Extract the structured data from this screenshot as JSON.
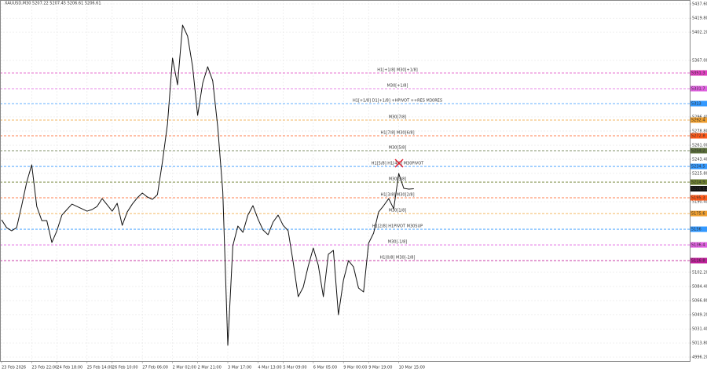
{
  "chart_data": {
    "type": "line",
    "title": "XAUUSD,M30  5207.22 5207.45 5206.61 5206.61",
    "categories": [
      "23 Feb 2026",
      null,
      null,
      null,
      null,
      null,
      "23 Feb 22:00",
      null,
      null,
      null,
      null,
      "24 Feb 18:00",
      null,
      null,
      null,
      null,
      null,
      "25 Feb 14:00",
      null,
      null,
      null,
      null,
      "26 Feb 10:00",
      null,
      null,
      null,
      null,
      null,
      "27 Feb 06:00",
      null,
      null,
      null,
      null,
      null,
      "2 Mar 02:00",
      null,
      null,
      null,
      null,
      "2 Mar 21:00",
      null,
      null,
      null,
      null,
      null,
      "3 Mar 17:00",
      null,
      null,
      null,
      null,
      null,
      "4 Mar 13:00",
      null,
      null,
      null,
      null,
      "5 Mar 09:00",
      null,
      null,
      null,
      null,
      null,
      "6 Mar 05:00",
      null,
      null,
      null,
      null,
      null,
      "9 Mar 00:00",
      null,
      null,
      null,
      null,
      "9 Mar 19:00",
      null,
      null,
      null,
      null,
      null,
      "10 Mar 15:00",
      null,
      null,
      null
    ],
    "series": [
      {
        "name": "XAUUSD,M30",
        "color": "#111111",
        "values": [
          5167.8,
          5158.0,
          5154.1,
          5158.0,
          5185.5,
          5214.9,
          5236.5,
          5184.5,
          5166.8,
          5166.8,
          5139.4,
          5154.1,
          5173.7,
          5180.6,
          5187.4,
          5184.5,
          5181.5,
          5178.6,
          5180.6,
          5184.5,
          5194.3,
          5186.5,
          5178.6,
          5188.4,
          5160.9,
          5177.6,
          5187.4,
          5195.3,
          5201.2,
          5196.3,
          5193.3,
          5199.2,
          5240.4,
          5287.5,
          5369.9,
          5336.5,
          5411.1,
          5397.4,
          5359.1,
          5298.3,
          5338.5,
          5359.1,
          5341.5,
          5283.6,
          5203.1,
          5010.9,
          5135.4,
          5160.0,
          5152.1,
          5173.7,
          5185.5,
          5168.8,
          5155.1,
          5149.2,
          5164.9,
          5173.7,
          5160.9,
          5154.1,
          5114.9,
          5071.7,
          5083.5,
          5110.0,
          5132.5,
          5110.9,
          5071.7,
          5124.7,
          5129.6,
          5049.1,
          5092.3,
          5116.8,
          5109.0,
          5082.5,
          5077.6,
          5138.4,
          5151.2,
          5177.6,
          5185.5,
          5194.3,
          5181.5,
          5225.7,
          5207.1,
          5206.1,
          5206.61
        ]
      }
    ],
    "ylim": [
      4996.2,
      5437.6
    ],
    "yticks": [
      {
        "value": 5437.6,
        "label": "5437.60"
      },
      {
        "value": 5419.8,
        "label": "5419.80"
      },
      {
        "value": 5402.2,
        "label": "5402.20"
      },
      {
        "value": 5367.0,
        "label": "5367.00"
      },
      {
        "value": 5296.4,
        "label": "5296.40"
      },
      {
        "value": 5278.8,
        "label": "5278.80"
      },
      {
        "value": 5261.0,
        "label": "5261.00"
      },
      {
        "value": 5243.4,
        "label": "5243.40"
      },
      {
        "value": 5225.8,
        "label": "5225.80"
      },
      {
        "value": 5190.4,
        "label": "5190.40"
      },
      {
        "value": 5102.2,
        "label": "5102.20"
      },
      {
        "value": 5084.4,
        "label": "5084.40"
      },
      {
        "value": 5066.8,
        "label": "5066.80"
      },
      {
        "value": 5049.2,
        "label": "5049.20"
      },
      {
        "value": 5031.4,
        "label": "5031.40"
      },
      {
        "value": 5013.8,
        "label": "5013.80"
      },
      {
        "value": 4996.2,
        "label": "4996.20"
      }
    ],
    "grid": true,
    "levels": [
      {
        "label": "H1[+1/8] M30[+1/8]",
        "value": 5351.3,
        "color": "#e040c0"
      },
      {
        "label": "M30[+1/8]",
        "value": 5331.7,
        "color": "#e060e0"
      },
      {
        "label": "H1[+1/8] D1[+1/8] +HPIVOT ++RES M30RES",
        "value": 5313.0,
        "color": "#3399ff"
      },
      {
        "label": "M30[7/8]",
        "value": 5292.4,
        "color": "#f0a030"
      },
      {
        "label": "H1[7/8] M30[6/8]",
        "value": 5272.8,
        "color": "#ff5a1a"
      },
      {
        "label": "M30[5/8]",
        "value": 5254.2,
        "color": "#5a6e3a"
      },
      {
        "label": "H1[5/8] H1[4/8] M30PIVOT",
        "value": 5234.5,
        "color": "#3399ff"
      },
      {
        "label": "M30[3/8]",
        "value": 5214.9,
        "color": "#6b7d2e"
      },
      {
        "label": "H1[3/8] M30[2/8]",
        "value": 5195.3,
        "color": "#ff5a1a"
      },
      {
        "label": "M30[1/8]",
        "value": 5175.6,
        "color": "#f0a030"
      },
      {
        "label": "H1[2/8] H1PIVOT M30SUP",
        "value": 5156.0,
        "color": "#3399ff"
      },
      {
        "label": "M30[-1/8]",
        "value": 5136.4,
        "color": "#e060e0"
      },
      {
        "label": "H1[0/8] M30[-2/8]",
        "value": 5116.8,
        "color": "#c0209a"
      }
    ]
  }
}
